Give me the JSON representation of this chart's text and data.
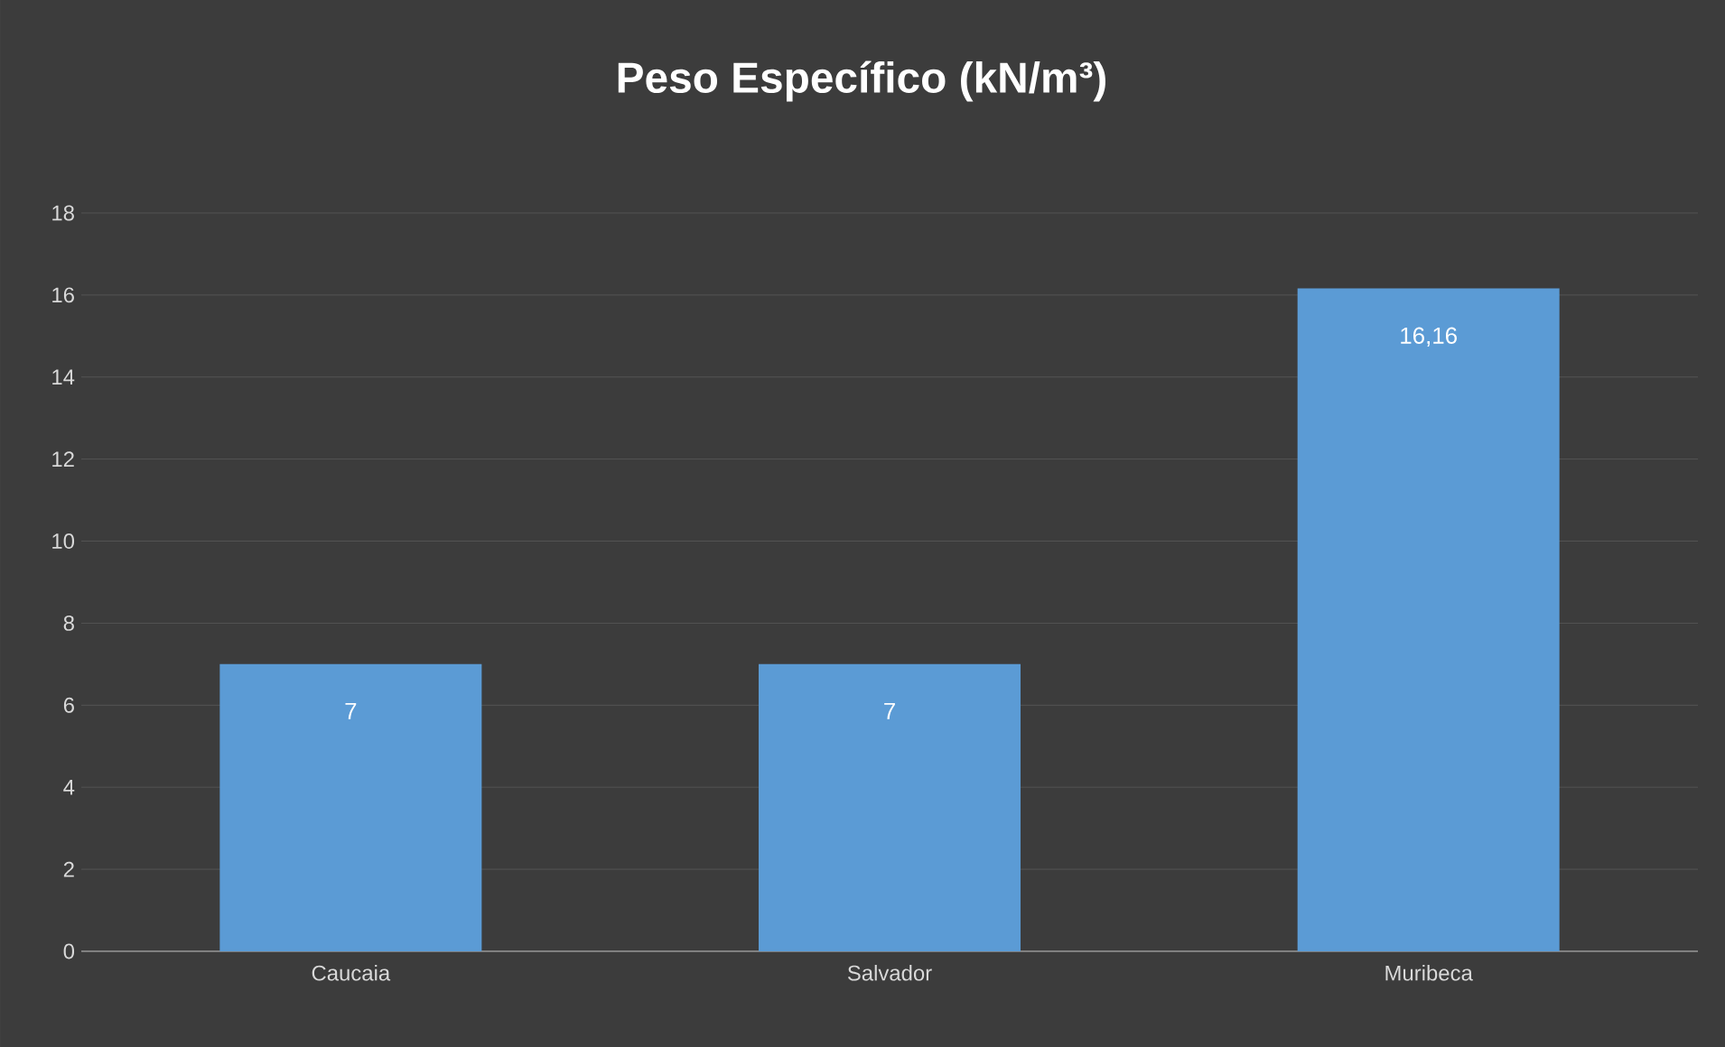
{
  "chart_data": {
    "type": "bar",
    "title": "Peso Específico  (kN/m³)",
    "categories": [
      "Caucaia",
      "Salvador",
      "Muribeca"
    ],
    "values": [
      7,
      7,
      16.16
    ],
    "value_labels": [
      "7",
      "7",
      "16,16"
    ],
    "color": "#5b9bd5",
    "ylim": [
      0,
      18
    ],
    "yticks": [
      0,
      2,
      4,
      6,
      8,
      10,
      12,
      14,
      16,
      18
    ],
    "grid": "y"
  }
}
